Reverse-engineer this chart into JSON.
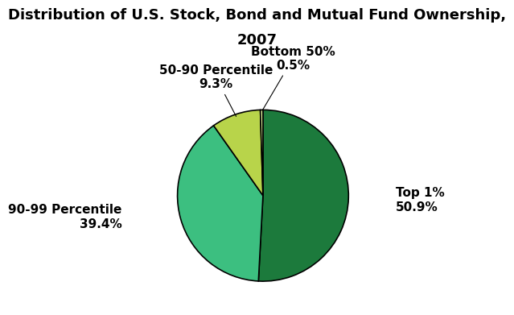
{
  "title_line1": "Distribution of U.S. Stock, Bond and Mutual Fund Ownership,",
  "title_line2": "2007",
  "slices": [
    {
      "label_line1": "Top 1%",
      "label_line2": "50.9%",
      "value": 50.9,
      "color": "#1c7a3c"
    },
    {
      "label_line1": "90-99 Percentile",
      "label_line2": "39.4%",
      "value": 39.4,
      "color": "#3cbf80"
    },
    {
      "label_line1": "50-90 Percentile",
      "label_line2": "9.3%",
      "value": 9.3,
      "color": "#b8d44a"
    },
    {
      "label_line1": "Bottom 50%",
      "label_line2": "0.5%",
      "value": 0.5,
      "color": "#d8e896"
    }
  ],
  "title_fontsize": 13,
  "label_fontsize": 11,
  "background_color": "#ffffff",
  "edge_color": "#000000",
  "startangle": 90
}
